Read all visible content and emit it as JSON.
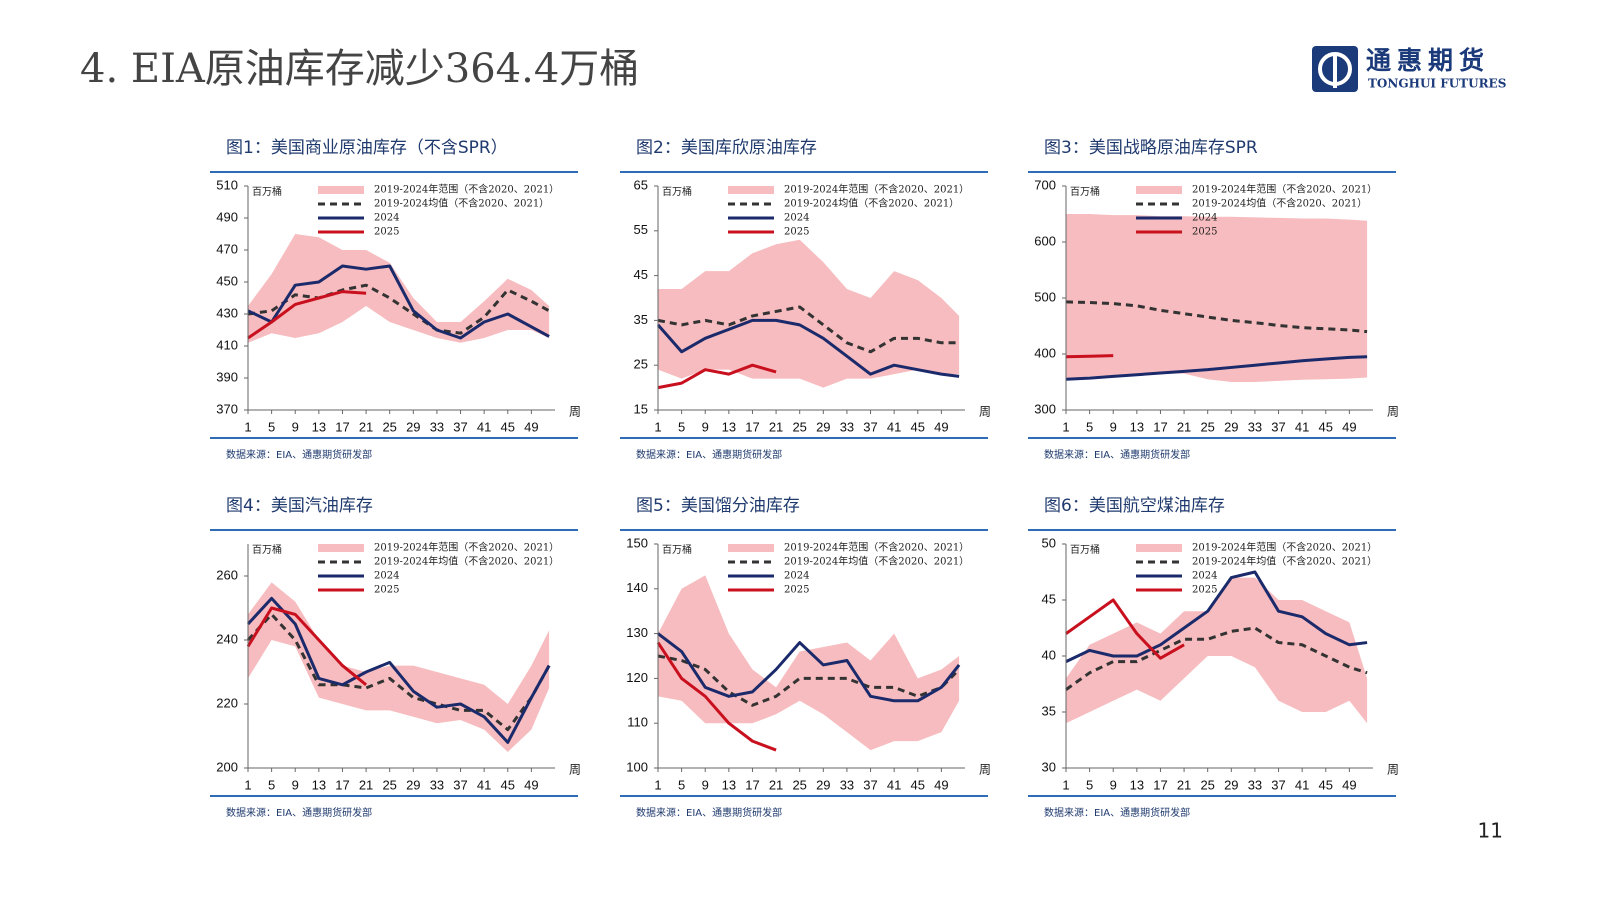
{
  "title": "4. EIA原油库存减少364.4万桶",
  "logo": {
    "name": "通惠期货",
    "subtitle": "TONGHUI FUTURES"
  },
  "page_number": "11",
  "chart_data": [
    {
      "type": "line",
      "title": "图1：美国商业原油库存（不含SPR）",
      "source": "数据来源：EIA、通惠期货研发部",
      "y_unit": "百万桶",
      "x_unit": "周",
      "x": [
        1,
        5,
        9,
        13,
        17,
        21,
        25,
        29,
        33,
        37,
        41,
        45,
        49,
        52
      ],
      "xlim": [
        1,
        53
      ],
      "xticks": [
        1,
        5,
        9,
        13,
        17,
        21,
        25,
        29,
        33,
        37,
        41,
        45,
        49
      ],
      "ylim": [
        370,
        510
      ],
      "yticks": [
        370,
        390,
        410,
        430,
        450,
        470,
        490,
        510
      ],
      "series": [
        {
          "name": "2019-2024年范围（不含2020、2021）",
          "type": "range",
          "color": "#f7bcbf",
          "low": [
            412,
            418,
            415,
            418,
            425,
            435,
            425,
            420,
            415,
            412,
            415,
            420,
            420,
            415
          ],
          "high": [
            435,
            455,
            480,
            478,
            470,
            470,
            462,
            440,
            425,
            425,
            438,
            452,
            445,
            435
          ]
        },
        {
          "name": "2019-2024均值（不含2020、2021）",
          "color": "#333333",
          "dash": true,
          "values": [
            430,
            432,
            442,
            440,
            445,
            448,
            440,
            430,
            420,
            418,
            428,
            445,
            438,
            432
          ]
        },
        {
          "name": "2024",
          "color": "#1b2a6b",
          "values": [
            432,
            425,
            448,
            450,
            460,
            458,
            460,
            432,
            420,
            415,
            425,
            430,
            422,
            416
          ]
        },
        {
          "name": "2025",
          "color": "#c8101e",
          "values": [
            415,
            425,
            436,
            440,
            444,
            443,
            null,
            null,
            null,
            null,
            null,
            null,
            null,
            null
          ]
        }
      ]
    },
    {
      "type": "line",
      "title": "图2：美国库欣原油库存",
      "source": "数据来源：EIA、通惠期货研发部",
      "y_unit": "百万桶",
      "x_unit": "周",
      "x": [
        1,
        5,
        9,
        13,
        17,
        21,
        25,
        29,
        33,
        37,
        41,
        45,
        49,
        52
      ],
      "xlim": [
        1,
        53
      ],
      "xticks": [
        1,
        5,
        9,
        13,
        17,
        21,
        25,
        29,
        33,
        37,
        41,
        45,
        49
      ],
      "ylim": [
        15,
        65
      ],
      "yticks": [
        15,
        25,
        35,
        45,
        55,
        65
      ],
      "series": [
        {
          "name": "2019-2024年范围（不含2020、2021）",
          "type": "range",
          "color": "#f7bcbf",
          "low": [
            24,
            22,
            24,
            24,
            22,
            22,
            22,
            20,
            22,
            22,
            23,
            24,
            23,
            23
          ],
          "high": [
            42,
            42,
            46,
            46,
            50,
            52,
            53,
            48,
            42,
            40,
            46,
            44,
            40,
            36
          ]
        },
        {
          "name": "2019-2024均值（不含2020、2021）",
          "color": "#333333",
          "dash": true,
          "values": [
            35,
            34,
            35,
            34,
            36,
            37,
            38,
            34,
            30,
            28,
            31,
            31,
            30,
            30
          ]
        },
        {
          "name": "2024",
          "color": "#1b2a6b",
          "values": [
            34,
            28,
            31,
            33,
            35,
            35,
            34,
            31,
            27,
            23,
            25,
            24,
            23,
            22.5
          ]
        },
        {
          "name": "2025",
          "color": "#c8101e",
          "values": [
            20,
            21,
            24,
            23,
            25,
            23.5,
            null,
            null,
            null,
            null,
            null,
            null,
            null,
            null
          ]
        }
      ]
    },
    {
      "type": "line",
      "title": "图3：美国战略原油库存SPR",
      "source": "数据来源：EIA、通惠期货研发部",
      "y_unit": "百万桶",
      "x_unit": "周",
      "x": [
        1,
        5,
        9,
        13,
        17,
        21,
        25,
        29,
        33,
        37,
        41,
        45,
        49,
        52
      ],
      "xlim": [
        1,
        53
      ],
      "xticks": [
        1,
        5,
        9,
        13,
        17,
        21,
        25,
        29,
        33,
        37,
        41,
        45,
        49
      ],
      "ylim": [
        300,
        700
      ],
      "yticks": [
        300,
        400,
        500,
        600,
        700
      ],
      "series": [
        {
          "name": "2019-2024年范围（不含2020、2021）",
          "type": "range",
          "color": "#f7bcbf",
          "low": [
            355,
            360,
            362,
            365,
            365,
            365,
            355,
            350,
            350,
            352,
            354,
            355,
            356,
            358
          ],
          "high": [
            650,
            650,
            648,
            648,
            646,
            646,
            645,
            645,
            644,
            643,
            642,
            642,
            640,
            638
          ]
        },
        {
          "name": "2019-2024均值（不含2020、2021）",
          "color": "#333333",
          "dash": true,
          "values": [
            493,
            492,
            490,
            486,
            478,
            472,
            466,
            460,
            456,
            451,
            447,
            445,
            443,
            440
          ]
        },
        {
          "name": "2024",
          "color": "#1b2a6b",
          "values": [
            355,
            357,
            360,
            363,
            366,
            369,
            372,
            376,
            380,
            384,
            388,
            391,
            394,
            395
          ]
        },
        {
          "name": "2025",
          "color": "#c8101e",
          "values": [
            395,
            396,
            397,
            null,
            null,
            null,
            null,
            null,
            null,
            null,
            null,
            null,
            null,
            null
          ]
        }
      ]
    },
    {
      "type": "line",
      "title": "图4：美国汽油库存",
      "source": "数据来源：EIA、通惠期货研发部",
      "y_unit": "百万桶",
      "x_unit": "周",
      "x": [
        1,
        5,
        9,
        13,
        17,
        21,
        25,
        29,
        33,
        37,
        41,
        45,
        49,
        52
      ],
      "xlim": [
        1,
        53
      ],
      "xticks": [
        1,
        5,
        9,
        13,
        17,
        21,
        25,
        29,
        33,
        37,
        41,
        45,
        49
      ],
      "ylim": [
        200,
        270
      ],
      "yticks": [
        200,
        220,
        240,
        260
      ],
      "series": [
        {
          "name": "2019-2024年范围（不含2020、2021）",
          "type": "range",
          "color": "#f7bcbf",
          "low": [
            228,
            240,
            238,
            222,
            220,
            218,
            218,
            216,
            214,
            215,
            212,
            205,
            212,
            225
          ],
          "high": [
            248,
            258,
            252,
            240,
            232,
            230,
            232,
            232,
            230,
            228,
            226,
            220,
            232,
            243
          ]
        },
        {
          "name": "2019-2024年均值（不含2020、2021）",
          "color": "#333333",
          "dash": true,
          "values": [
            240,
            248,
            240,
            226,
            226,
            225,
            228,
            222,
            220,
            218,
            218,
            212,
            222,
            232
          ]
        },
        {
          "name": "2024",
          "color": "#1b2a6b",
          "values": [
            245,
            253,
            245,
            228,
            226,
            230,
            233,
            224,
            219,
            220,
            216,
            208,
            222,
            232
          ]
        },
        {
          "name": "2025",
          "color": "#c8101e",
          "values": [
            238,
            250,
            248,
            240,
            232,
            226,
            null,
            null,
            null,
            null,
            null,
            null,
            null,
            null
          ]
        }
      ]
    },
    {
      "type": "line",
      "title": "图5：美国馏分油库存",
      "source": "数据来源：EIA、通惠期货研发部",
      "y_unit": "百万桶",
      "x_unit": "周",
      "x": [
        1,
        5,
        9,
        13,
        17,
        21,
        25,
        29,
        33,
        37,
        41,
        45,
        49,
        52
      ],
      "xlim": [
        1,
        53
      ],
      "xticks": [
        1,
        5,
        9,
        13,
        17,
        21,
        25,
        29,
        33,
        37,
        41,
        45,
        49
      ],
      "ylim": [
        100,
        150
      ],
      "yticks": [
        100,
        110,
        120,
        130,
        140,
        150
      ],
      "series": [
        {
          "name": "2019-2024年范围（不含2020、2021）",
          "type": "range",
          "color": "#f7bcbf",
          "low": [
            116,
            115,
            110,
            110,
            110,
            112,
            115,
            112,
            108,
            104,
            106,
            106,
            108,
            115
          ],
          "high": [
            130,
            140,
            143,
            130,
            122,
            118,
            126,
            127,
            128,
            124,
            130,
            120,
            122,
            125
          ]
        },
        {
          "name": "2019-2024年均值（不含2020、2021）",
          "color": "#333333",
          "dash": true,
          "values": [
            125,
            124,
            122,
            117,
            114,
            116,
            120,
            120,
            120,
            118,
            118,
            116,
            118,
            122
          ]
        },
        {
          "name": "2024",
          "color": "#1b2a6b",
          "values": [
            130,
            126,
            118,
            116,
            117,
            122,
            128,
            123,
            124,
            116,
            115,
            115,
            118,
            123
          ]
        },
        {
          "name": "2025",
          "color": "#c8101e",
          "values": [
            128,
            120,
            116,
            110,
            106,
            104,
            null,
            null,
            null,
            null,
            null,
            null,
            null,
            null
          ]
        }
      ]
    },
    {
      "type": "line",
      "title": "图6：美国航空煤油库存",
      "source": "数据来源：EIA、通惠期货研发部",
      "y_unit": "百万桶",
      "x_unit": "周",
      "x": [
        1,
        5,
        9,
        13,
        17,
        21,
        25,
        29,
        33,
        37,
        41,
        45,
        49,
        52
      ],
      "xlim": [
        1,
        53
      ],
      "xticks": [
        1,
        5,
        9,
        13,
        17,
        21,
        25,
        29,
        33,
        37,
        41,
        45,
        49
      ],
      "ylim": [
        30,
        50
      ],
      "yticks": [
        30,
        35,
        40,
        45,
        50
      ],
      "series": [
        {
          "name": "2019-2024年范围（不含2020、2021）",
          "type": "range",
          "color": "#f7bcbf",
          "low": [
            34,
            35,
            36,
            37,
            36,
            38,
            40,
            40,
            39,
            36,
            35,
            35,
            36,
            34
          ],
          "high": [
            38,
            41,
            42,
            43,
            42,
            44,
            44,
            47,
            47,
            45,
            45,
            44,
            43,
            38
          ]
        },
        {
          "name": "2019-2024年均值（不含2020、2021）",
          "color": "#333333",
          "dash": true,
          "values": [
            37,
            38.5,
            39.5,
            39.5,
            40.5,
            41.5,
            41.5,
            42.2,
            42.5,
            41.2,
            41,
            40,
            39,
            38.5
          ]
        },
        {
          "name": "2024",
          "color": "#1b2a6b",
          "values": [
            39.5,
            40.5,
            40,
            40,
            41,
            42.5,
            44,
            47,
            47.5,
            44,
            43.5,
            42,
            41,
            41.2
          ]
        },
        {
          "name": "2025",
          "color": "#c8101e",
          "values": [
            42,
            43.5,
            45,
            42,
            39.8,
            41,
            null,
            null,
            null,
            null,
            null,
            null,
            null,
            null
          ]
        }
      ]
    }
  ]
}
